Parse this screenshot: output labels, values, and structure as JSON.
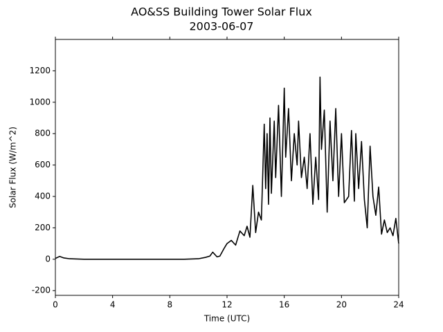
{
  "chart_data": {
    "type": "line",
    "title": "AO&SS Building Tower Solar Flux",
    "subtitle": "2003-06-07",
    "xlabel": "Time (UTC)",
    "ylabel": "Solar Flux (W/m^2)",
    "xlim": [
      0,
      24
    ],
    "xticks": [
      0,
      4,
      8,
      12,
      16,
      20,
      24
    ],
    "ylim": [
      -230,
      1400
    ],
    "yticks": [
      -200,
      0,
      200,
      400,
      600,
      800,
      1000,
      1200
    ],
    "x": [
      0,
      0.3,
      0.6,
      1,
      2,
      4,
      6,
      8,
      9,
      10,
      10.5,
      10.8,
      11,
      11.3,
      11.5,
      11.8,
      12,
      12.3,
      12.6,
      12.9,
      13.2,
      13.4,
      13.6,
      13.8,
      14,
      14.2,
      14.4,
      14.6,
      14.7,
      14.8,
      14.9,
      15,
      15.1,
      15.3,
      15.4,
      15.6,
      15.8,
      16,
      16.1,
      16.3,
      16.5,
      16.7,
      16.9,
      17,
      17.2,
      17.4,
      17.6,
      17.8,
      18,
      18.2,
      18.4,
      18.5,
      18.6,
      18.8,
      19,
      19.2,
      19.4,
      19.6,
      19.8,
      20,
      20.2,
      20.5,
      20.7,
      20.9,
      21,
      21.2,
      21.4,
      21.6,
      21.8,
      22,
      22.2,
      22.4,
      22.6,
      22.8,
      23,
      23.2,
      23.4,
      23.6,
      23.8,
      24
    ],
    "series": [
      {
        "name": "Solar Flux",
        "color": "#000000",
        "values": [
          5,
          18,
          8,
          3,
          0,
          0,
          0,
          0,
          0,
          3,
          12,
          20,
          45,
          15,
          20,
          70,
          100,
          120,
          90,
          180,
          150,
          210,
          140,
          470,
          170,
          300,
          250,
          860,
          450,
          800,
          350,
          900,
          420,
          880,
          520,
          980,
          400,
          1090,
          650,
          960,
          500,
          800,
          600,
          880,
          520,
          650,
          450,
          800,
          350,
          650,
          380,
          1160,
          700,
          950,
          300,
          880,
          500,
          960,
          400,
          800,
          360,
          400,
          820,
          370,
          800,
          450,
          750,
          380,
          200,
          720,
          400,
          280,
          460,
          160,
          250,
          170,
          200,
          150,
          260,
          100
        ]
      }
    ]
  }
}
